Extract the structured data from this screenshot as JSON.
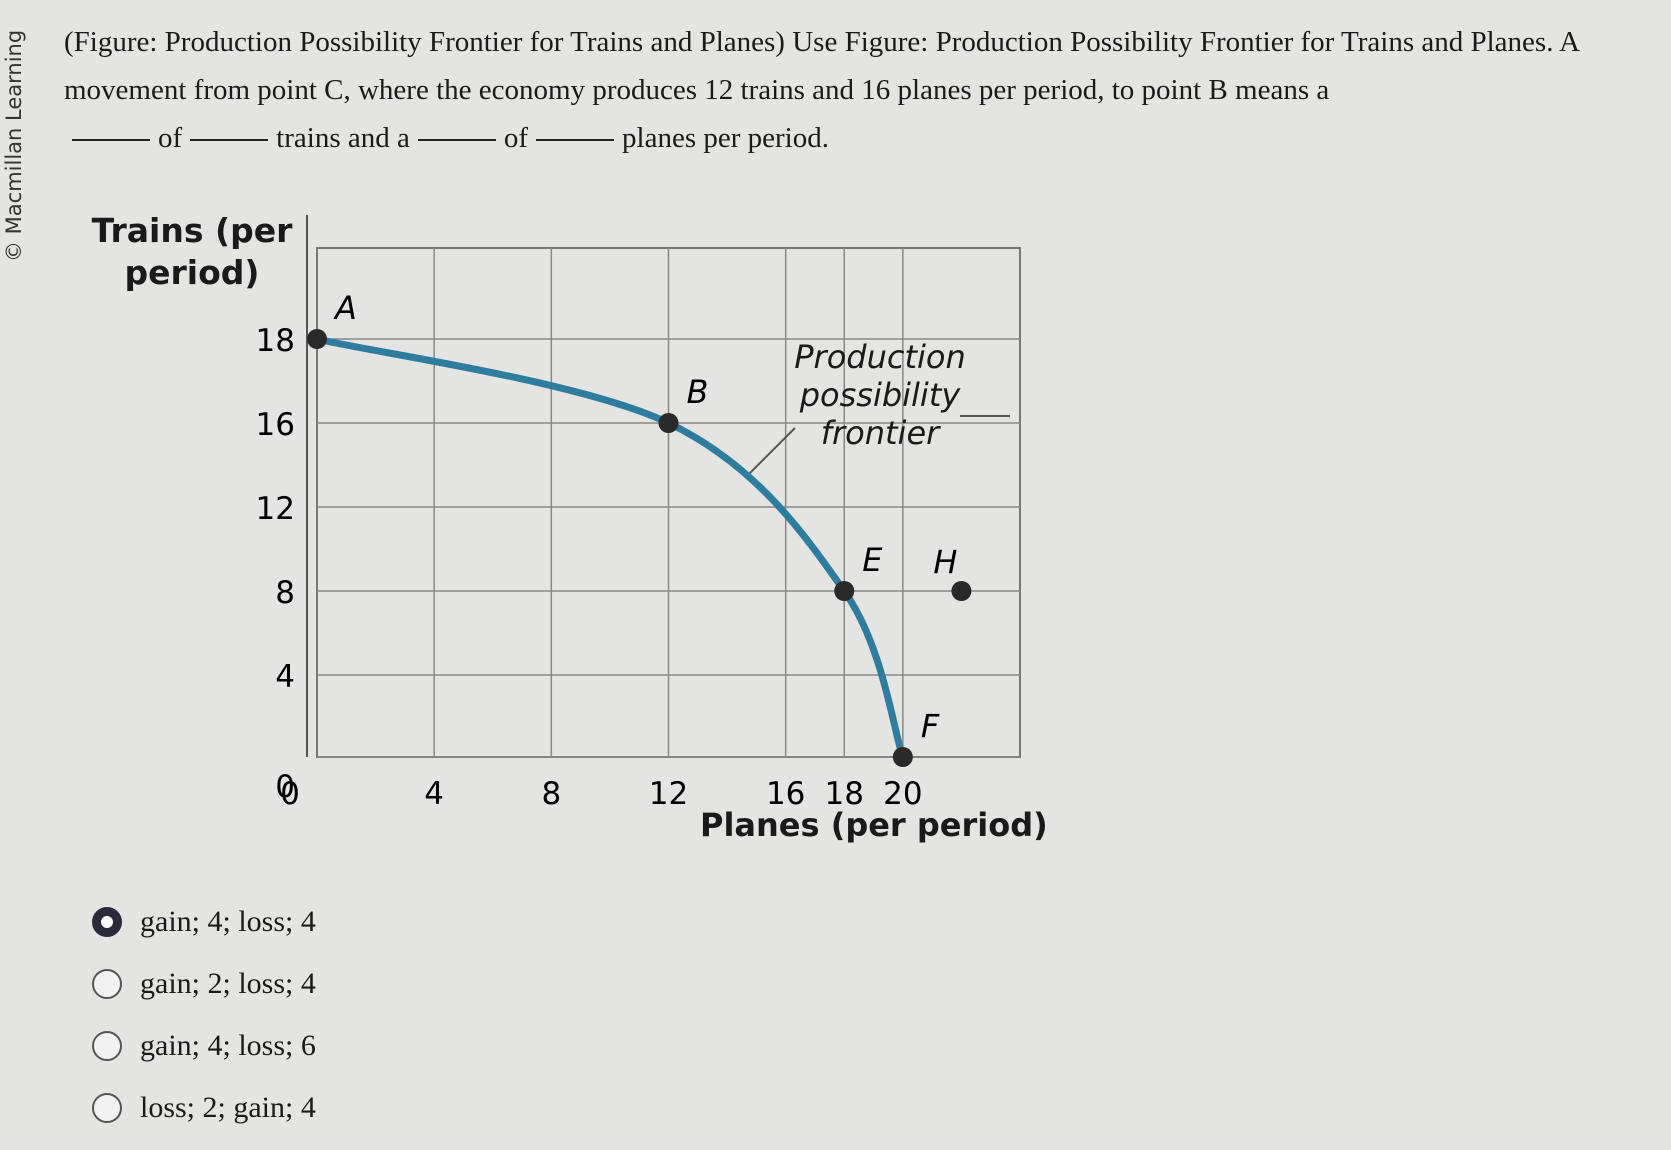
{
  "copyright": "© Macmillan Learning",
  "question": {
    "text_parts": [
      "(Figure: Production Possibility Frontier for Trains and Planes) Use Figure: Production Possibility Frontier for Trains and Planes. A movement from point C, where the economy produces 12 trains and 16 planes per period, to point B means a",
      "of",
      "trains and a",
      "of",
      "planes per period."
    ]
  },
  "chart_data": {
    "type": "line",
    "ylabel": "Trains (per period)",
    "xlabel": "Planes (per period)",
    "annotation": "Production possibility frontier",
    "xlim": [
      0,
      24
    ],
    "ylim": [
      0,
      20
    ],
    "xticks": [
      0,
      4,
      8,
      12,
      16,
      18,
      20
    ],
    "yticks": [
      0,
      4,
      8,
      12,
      16,
      18
    ],
    "grid": true,
    "color": "#2f7d9e",
    "x": [
      0,
      12,
      18,
      20
    ],
    "values": [
      18,
      16,
      8,
      0
    ],
    "point_labels": [
      "A",
      "B",
      "E",
      "F"
    ],
    "extra_point": {
      "label": "H",
      "x": 22,
      "y": 8
    }
  },
  "options": [
    {
      "text": "gain; 4; loss; 4",
      "selected": true
    },
    {
      "text": "gain; 2; loss; 4",
      "selected": false
    },
    {
      "text": "gain; 4; loss; 6",
      "selected": false
    },
    {
      "text": "loss; 2; gain; 4",
      "selected": false
    }
  ]
}
